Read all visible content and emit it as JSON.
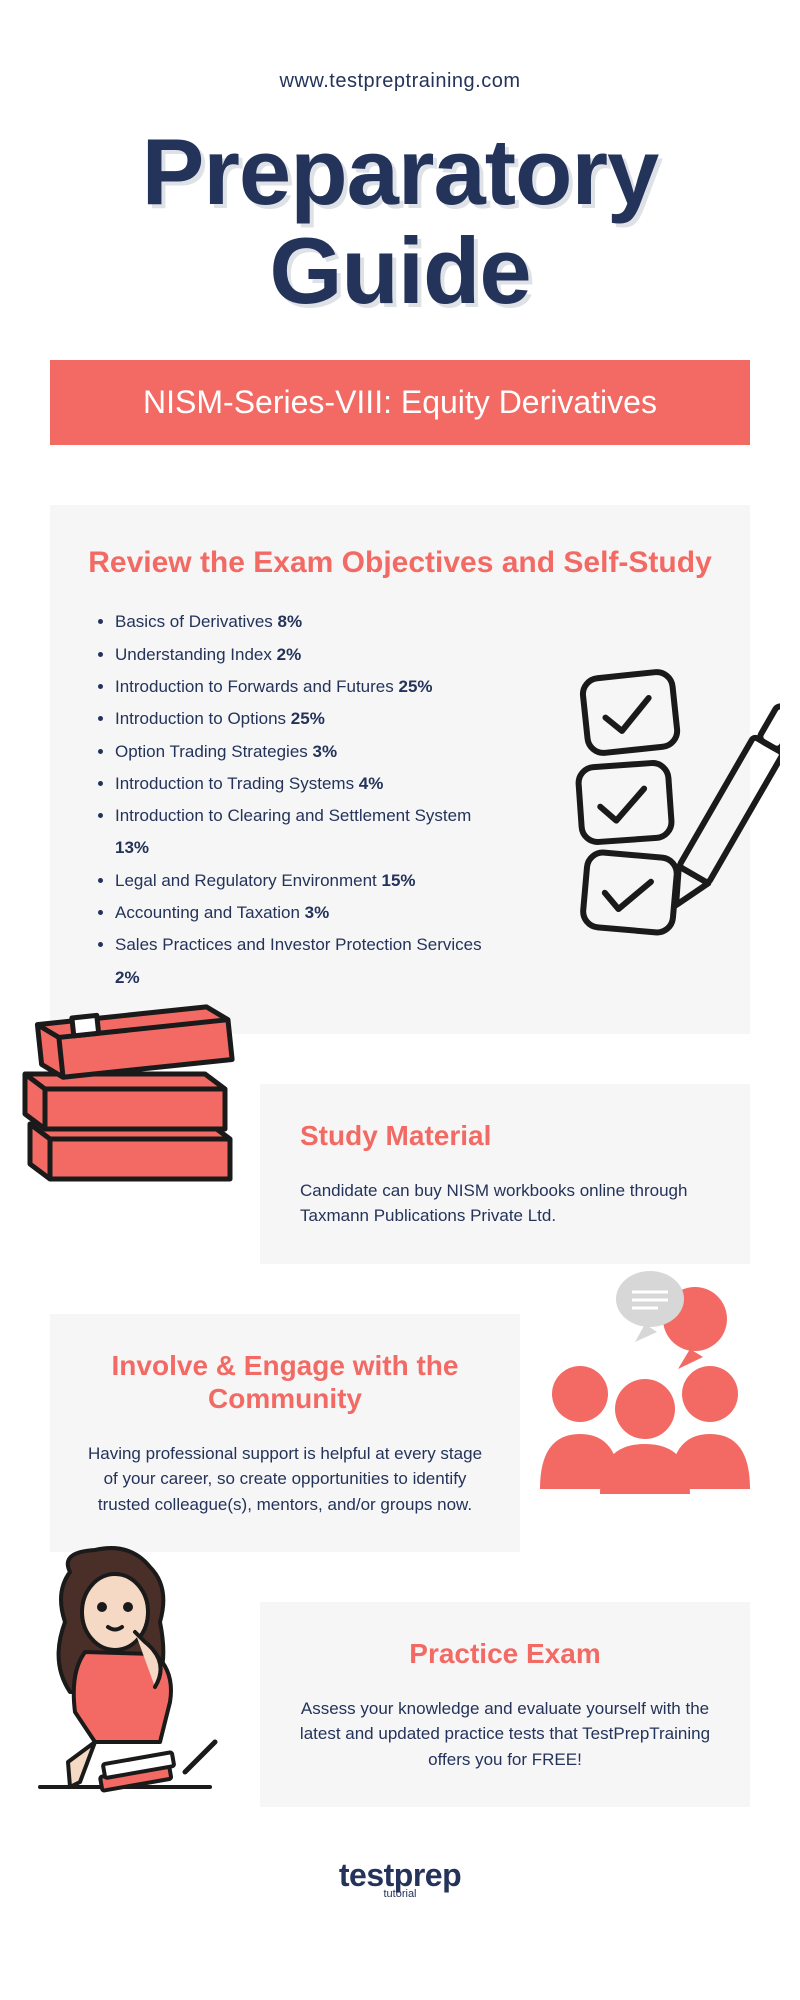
{
  "header": {
    "url": "www.testpreptraining.com",
    "title": "Preparatory Guide",
    "subtitle": "NISM-Series-VIII: Equity Derivatives"
  },
  "colors": {
    "primary_text": "#24335a",
    "accent": "#f26a63",
    "card_bg": "#f6f6f6",
    "white": "#ffffff",
    "stroke": "#1a1a1a"
  },
  "typography": {
    "main_title_fontsize": 94,
    "subtitle_fontsize": 32,
    "section_title_fontsize": 30,
    "body_fontsize": 17
  },
  "sections": {
    "objectives": {
      "title": "Review the Exam Objectives and Self-Study",
      "items": [
        {
          "label": "Basics of Derivatives",
          "weight": "8%"
        },
        {
          "label": "Understanding Index",
          "weight": "2%"
        },
        {
          "label": "Introduction to Forwards and Futures",
          "weight": "25%"
        },
        {
          "label": "Introduction to Options",
          "weight": "25%"
        },
        {
          "label": "Option Trading Strategies",
          "weight": "3%"
        },
        {
          "label": "Introduction to Trading Systems",
          "weight": "4%"
        },
        {
          "label": "Introduction to Clearing and Settlement System",
          "weight": "13%"
        },
        {
          "label": "Legal and Regulatory Environment",
          "weight": "15%"
        },
        {
          "label": "Accounting and Taxation",
          "weight": "3%"
        },
        {
          "label": "Sales Practices and Investor Protection Services",
          "weight": "2%"
        }
      ]
    },
    "study_material": {
      "title": "Study Material",
      "body": "Candidate can buy NISM workbooks online through Taxmann Publications Private Ltd."
    },
    "community": {
      "title": "Involve & Engage with the Community",
      "body": "Having professional support is helpful at every stage of your career, so create opportunities to identify trusted colleague(s), mentors, and/or groups now."
    },
    "practice": {
      "title": "Practice Exam",
      "body": "Assess your knowledge and evaluate yourself with the latest and updated practice tests that TestPrepTraining offers you for FREE!"
    }
  },
  "footer": {
    "brand": "testprep",
    "sub": "tutorial"
  }
}
